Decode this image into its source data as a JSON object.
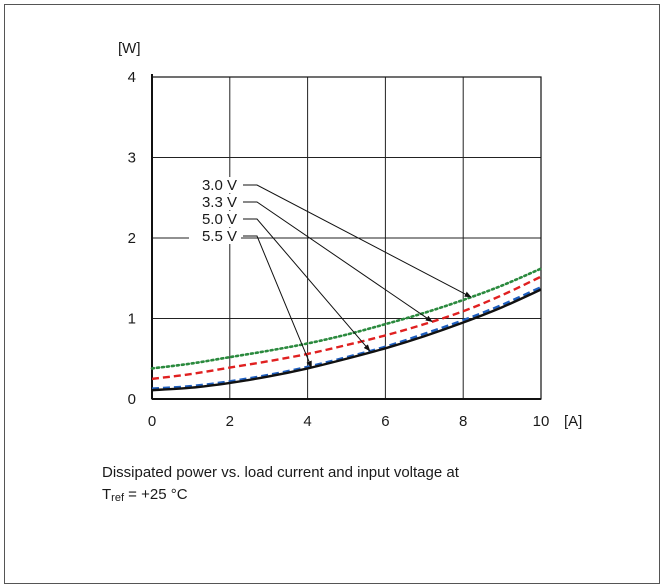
{
  "chart_data": {
    "type": "line",
    "title": "",
    "xlabel": "",
    "ylabel": "",
    "y_unit": "[W]",
    "x_unit": "[A]",
    "xlim": [
      0,
      10
    ],
    "ylim": [
      0,
      4
    ],
    "x_ticks": [
      "0",
      "2",
      "4",
      "6",
      "8",
      "10"
    ],
    "y_ticks": [
      "0",
      "1",
      "2",
      "3",
      "4"
    ],
    "grid": true,
    "x": [
      0,
      1,
      2,
      3,
      4,
      5,
      6,
      7,
      8,
      9,
      10
    ],
    "series": [
      {
        "name": "3.0 V",
        "color": "#2b8a3e",
        "style": "dotted",
        "values": [
          0.38,
          0.44,
          0.52,
          0.6,
          0.69,
          0.8,
          0.93,
          1.07,
          1.23,
          1.41,
          1.62
        ]
      },
      {
        "name": "3.3 V",
        "color": "#e02020",
        "style": "dashed",
        "values": [
          0.25,
          0.31,
          0.39,
          0.47,
          0.56,
          0.67,
          0.79,
          0.93,
          1.09,
          1.29,
          1.52
        ]
      },
      {
        "name": "5.0 V",
        "color": "#1f5fbf",
        "style": "dashed",
        "values": [
          0.13,
          0.16,
          0.22,
          0.3,
          0.4,
          0.52,
          0.65,
          0.81,
          0.98,
          1.17,
          1.39
        ]
      },
      {
        "name": "5.5 V",
        "color": "#111111",
        "style": "solid",
        "values": [
          0.11,
          0.14,
          0.2,
          0.28,
          0.38,
          0.5,
          0.63,
          0.78,
          0.95,
          1.14,
          1.36
        ]
      }
    ],
    "legend_labels": [
      "3.0 V",
      "3.3 V",
      "5.0 V",
      "5.5 V"
    ],
    "annotations": [
      {
        "series": "3.0 V",
        "at_x": 8.2
      },
      {
        "series": "3.3 V",
        "at_x": 7.2
      },
      {
        "series": "5.0 V",
        "at_x": 5.6
      },
      {
        "series": "5.5 V",
        "at_x": 4.1
      }
    ]
  },
  "caption": {
    "line1": "Dissipated power vs. load current and input voltage at",
    "t": "T",
    "t_sub": "ref",
    "rest": " = +25 °C"
  }
}
